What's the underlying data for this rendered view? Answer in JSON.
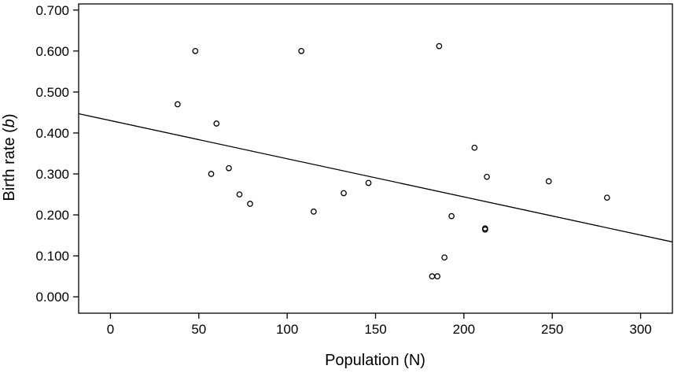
{
  "chart_data": {
    "type": "scatter",
    "title": "",
    "xlabel": "Population (N)",
    "ylabel_prefix": "Birth rate (",
    "ylabel_italic": "b",
    "ylabel_suffix": ")",
    "xlim": [
      -18,
      318
    ],
    "ylim": [
      -0.04,
      0.715
    ],
    "xticks": [
      0,
      50,
      100,
      150,
      200,
      250,
      300
    ],
    "xtick_labels": [
      "0",
      "50",
      "100",
      "150",
      "200",
      "250",
      "300"
    ],
    "yticks": [
      0.0,
      0.1,
      0.2,
      0.3,
      0.4,
      0.5,
      0.6,
      0.7
    ],
    "ytick_labels": [
      "0.000",
      "0.100",
      "0.200",
      "0.300",
      "0.400",
      "0.500",
      "0.600",
      "0.700"
    ],
    "grid": false,
    "legend": "none",
    "series": [
      {
        "points": [
          {
            "x": 38,
            "y": 0.47
          },
          {
            "x": 48,
            "y": 0.6
          },
          {
            "x": 57,
            "y": 0.3
          },
          {
            "x": 60,
            "y": 0.423
          },
          {
            "x": 67,
            "y": 0.314
          },
          {
            "x": 73,
            "y": 0.25
          },
          {
            "x": 79,
            "y": 0.227
          },
          {
            "x": 108,
            "y": 0.6
          },
          {
            "x": 115,
            "y": 0.208
          },
          {
            "x": 132,
            "y": 0.253
          },
          {
            "x": 146,
            "y": 0.278
          },
          {
            "x": 182,
            "y": 0.05
          },
          {
            "x": 185,
            "y": 0.05
          },
          {
            "x": 186,
            "y": 0.612
          },
          {
            "x": 189,
            "y": 0.096
          },
          {
            "x": 193,
            "y": 0.197
          },
          {
            "x": 206,
            "y": 0.364
          },
          {
            "x": 212,
            "y": 0.167
          },
          {
            "x": 212,
            "y": 0.164
          },
          {
            "x": 213,
            "y": 0.293
          },
          {
            "x": 248,
            "y": 0.282
          },
          {
            "x": 281,
            "y": 0.242
          }
        ]
      }
    ],
    "fit_line": {
      "x": [
        -18,
        318
      ],
      "y": [
        0.447,
        0.134
      ]
    }
  }
}
